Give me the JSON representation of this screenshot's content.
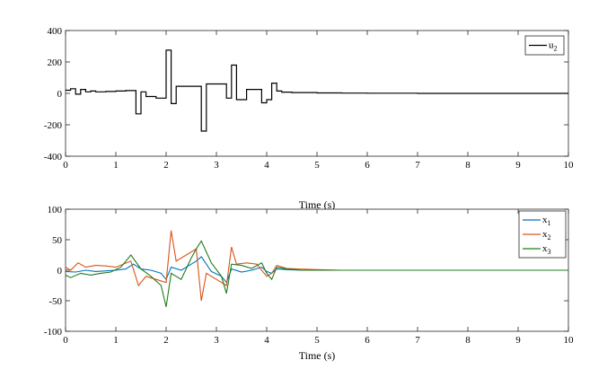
{
  "chart_data": [
    {
      "type": "line",
      "title": "",
      "xlabel": "Time (s)",
      "ylabel": "",
      "xlim": [
        0,
        10
      ],
      "ylim": [
        -400,
        400
      ],
      "xticks": [
        "0",
        "1",
        "2",
        "3",
        "4",
        "5",
        "6",
        "7",
        "8",
        "9",
        "10"
      ],
      "yticks": [
        "400",
        "200",
        "0",
        "-200",
        "-400"
      ],
      "legend": {
        "placement": "top-right",
        "entries": [
          {
            "base": "u",
            "sub": "2"
          }
        ]
      },
      "series": [
        {
          "name": "u2",
          "color": "#000000",
          "step": true,
          "x": [
            0,
            0.1,
            0.2,
            0.3,
            0.4,
            0.5,
            0.6,
            0.8,
            1.0,
            1.2,
            1.4,
            1.5,
            1.6,
            1.8,
            2.0,
            2.1,
            2.2,
            2.5,
            2.7,
            2.8,
            3.2,
            3.3,
            3.4,
            3.6,
            3.9,
            4.0,
            4.1,
            4.2,
            4.3,
            4.5,
            5.0,
            5.5,
            6.0,
            7.0,
            8.0,
            9.0,
            10.0
          ],
          "y": [
            20,
            30,
            -5,
            25,
            10,
            15,
            10,
            12,
            15,
            18,
            -130,
            10,
            -20,
            -30,
            275,
            -65,
            45,
            45,
            -240,
            60,
            -30,
            180,
            -40,
            25,
            -60,
            -40,
            65,
            15,
            8,
            5,
            3,
            2,
            1,
            0,
            0,
            0,
            0
          ]
        }
      ]
    },
    {
      "type": "line",
      "title": "",
      "xlabel": "Time (s)",
      "ylabel": "",
      "xlim": [
        0,
        10
      ],
      "ylim": [
        -100,
        100
      ],
      "xticks": [
        "0",
        "1",
        "2",
        "3",
        "4",
        "5",
        "6",
        "7",
        "8",
        "9",
        "10"
      ],
      "yticks": [
        "100",
        "50",
        "0",
        "-50",
        "-100"
      ],
      "legend": {
        "placement": "top-right",
        "entries": [
          {
            "base": "x",
            "sub": "1"
          },
          {
            "base": "x",
            "sub": "2"
          },
          {
            "base": "x",
            "sub": "3"
          }
        ]
      },
      "series": [
        {
          "name": "x1",
          "color": "#0072BD",
          "x": [
            0,
            0.2,
            0.4,
            0.6,
            0.8,
            1.0,
            1.2,
            1.35,
            1.5,
            1.7,
            1.9,
            2.0,
            2.1,
            2.3,
            2.5,
            2.6,
            2.7,
            2.9,
            3.1,
            3.2,
            3.3,
            3.5,
            3.7,
            3.9,
            4.0,
            4.1,
            4.2,
            4.4,
            4.7,
            5.0,
            6.0,
            8.0,
            10.0
          ],
          "y": [
            -2,
            -3,
            0,
            -2,
            -1,
            0,
            2,
            10,
            2,
            0,
            -5,
            -15,
            5,
            0,
            10,
            15,
            22,
            -2,
            -10,
            -20,
            2,
            -3,
            0,
            5,
            -2,
            -5,
            2,
            1,
            0,
            0,
            0,
            0,
            0
          ]
        },
        {
          "name": "x2",
          "color": "#D95319",
          "x": [
            0,
            0.1,
            0.25,
            0.4,
            0.6,
            0.8,
            1.0,
            1.3,
            1.45,
            1.6,
            1.8,
            2.0,
            2.1,
            2.2,
            2.4,
            2.6,
            2.7,
            2.8,
            3.0,
            3.2,
            3.3,
            3.4,
            3.6,
            3.8,
            4.0,
            4.1,
            4.2,
            4.4,
            4.6,
            5.0,
            5.5,
            6.0,
            8.0,
            10.0
          ],
          "y": [
            5,
            0,
            12,
            5,
            8,
            7,
            5,
            15,
            -25,
            -10,
            -15,
            -20,
            65,
            15,
            25,
            35,
            -50,
            -5,
            -15,
            -25,
            38,
            10,
            12,
            10,
            -10,
            -5,
            8,
            3,
            2,
            1,
            0,
            0,
            0,
            0
          ]
        },
        {
          "name": "x3",
          "color": "#1E7D1E",
          "x": [
            0,
            0.1,
            0.3,
            0.5,
            0.7,
            0.9,
            1.1,
            1.3,
            1.5,
            1.7,
            1.9,
            2.0,
            2.1,
            2.3,
            2.5,
            2.6,
            2.7,
            2.9,
            3.1,
            3.2,
            3.3,
            3.5,
            3.7,
            3.9,
            4.0,
            4.1,
            4.2,
            4.4,
            4.7,
            5.0,
            6.0,
            8.0,
            10.0
          ],
          "y": [
            -8,
            -12,
            -5,
            -8,
            -5,
            -3,
            5,
            25,
            2,
            -10,
            -25,
            -60,
            -5,
            -15,
            20,
            35,
            48,
            12,
            -10,
            -38,
            10,
            8,
            3,
            12,
            -5,
            -15,
            5,
            2,
            0,
            0,
            0,
            0,
            0
          ]
        }
      ]
    }
  ]
}
